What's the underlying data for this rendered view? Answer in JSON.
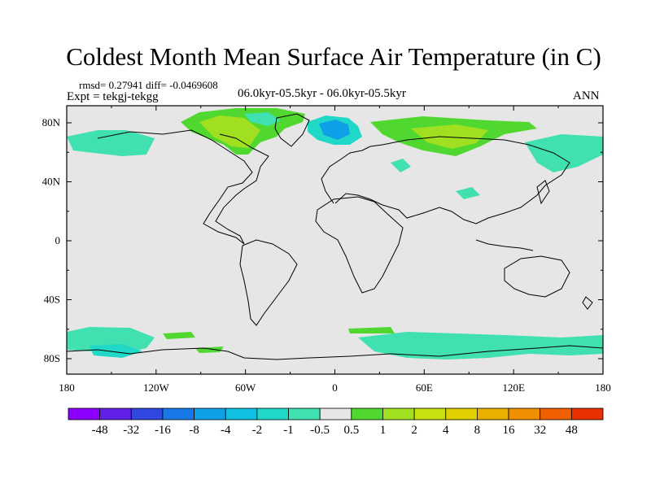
{
  "title": "Coldest Month Mean Surface Air Temperature (in C)",
  "stats": "rmsd= 0.27941 diff= -0.0469608",
  "expt": "Expt = tekgj-tekgg",
  "subtitle": "06.0kyr-05.5kyr - 06.0kyr-05.5kyr",
  "season": "ANN",
  "map": {
    "background_color": "#e6e6e6",
    "lat_labels": [
      "80N",
      "40N",
      "0",
      "40S",
      "80S"
    ],
    "lon_labels": [
      "180",
      "120W",
      "60W",
      "0",
      "60E",
      "120E",
      "180"
    ]
  },
  "colorbar": {
    "colors": [
      "#8b00ff",
      "#6020e8",
      "#3048e0",
      "#1878e8",
      "#10a0e8",
      "#10c0e0",
      "#20d8c8",
      "#40e0b0",
      "#e6e6e6",
      "#50d830",
      "#a0e020",
      "#c8e010",
      "#e0d000",
      "#e8b000",
      "#f09000",
      "#f06000",
      "#e83000"
    ],
    "labels": [
      "-48",
      "-32",
      "-16",
      "-8",
      "-4",
      "-2",
      "-1",
      "-0.5",
      "0.5",
      "1",
      "2",
      "4",
      "8",
      "16",
      "32",
      "48"
    ]
  },
  "chart_data": {
    "type": "heatmap",
    "units": "C",
    "contour_levels": [
      -48,
      -32,
      -16,
      -8,
      -4,
      -2,
      -1,
      -0.5,
      0.5,
      1,
      2,
      4,
      8,
      16,
      32,
      48
    ],
    "field": "Coldest Month Mean Surface Air Temperature difference",
    "regions": [
      {
        "region": "Arctic Canada / Greenland",
        "value_class": "0.5 to 2"
      },
      {
        "region": "North Atlantic / Scandinavia",
        "value_class": "-4 to -1"
      },
      {
        "region": "Northern Siberia",
        "value_class": "0.5 to 2"
      },
      {
        "region": "North Pacific / Alaska",
        "value_class": "-1 to -0.5"
      },
      {
        "region": "Southern Ocean",
        "value_class": "-1 to -0.5"
      },
      {
        "region": "Tropics and mid-latitudes",
        "value_class": "-0.5 to 0.5"
      }
    ]
  }
}
